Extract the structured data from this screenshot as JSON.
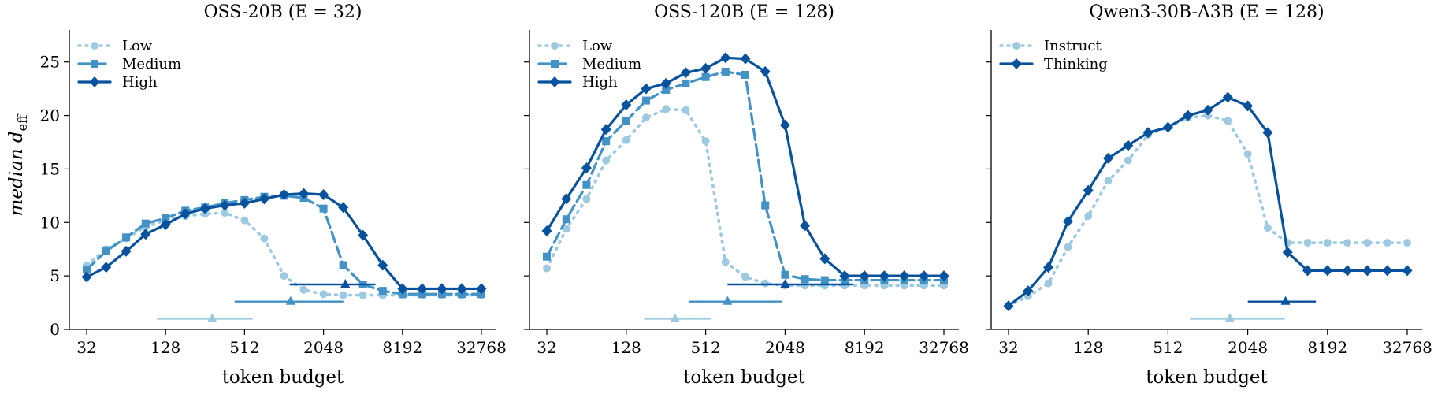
{
  "figure": {
    "ylabel_main": "median d",
    "ylabel_sub": "eff"
  },
  "chart_data": [
    {
      "type": "line",
      "title": "OSS-20B (E = 32)",
      "xlabel": "token budget",
      "ylabel": "median d_eff",
      "x_scale": "log2",
      "xlim": [
        32,
        32768
      ],
      "ylim": [
        0,
        28
      ],
      "x_ticks": [
        "32",
        "128",
        "512",
        "2048",
        "8192",
        "32768"
      ],
      "y_ticks": [
        "0",
        "5",
        "10",
        "15",
        "20",
        "25"
      ],
      "legend_position": "upper-left",
      "x": [
        32,
        45,
        64,
        90,
        128,
        181,
        256,
        362,
        512,
        724,
        1024,
        1448,
        2048,
        2896,
        4096,
        5793,
        8192,
        11585,
        16384,
        23170,
        32768
      ],
      "series": [
        {
          "name": "Low",
          "color": "#9ecae1",
          "style": "dotted",
          "marker": "circle",
          "values": [
            6.0,
            7.5,
            8.5,
            9.6,
            10.2,
            10.6,
            10.8,
            10.9,
            10.2,
            8.5,
            5.0,
            3.7,
            3.3,
            3.2,
            3.2,
            3.2,
            3.2,
            3.2,
            3.2,
            3.2,
            3.2
          ]
        },
        {
          "name": "Medium",
          "color": "#4292c6",
          "style": "dashed",
          "marker": "square",
          "values": [
            5.6,
            7.3,
            8.6,
            9.9,
            10.4,
            11.1,
            11.4,
            11.8,
            12.1,
            12.4,
            12.5,
            12.3,
            11.3,
            6.0,
            4.2,
            3.6,
            3.3,
            3.3,
            3.3,
            3.3,
            3.3
          ]
        },
        {
          "name": "High",
          "color": "#08519c",
          "style": "solid",
          "marker": "diamond",
          "values": [
            4.9,
            5.8,
            7.3,
            8.9,
            9.8,
            10.8,
            11.3,
            11.6,
            11.8,
            12.2,
            12.6,
            12.7,
            12.6,
            11.4,
            8.8,
            6.0,
            3.8,
            3.8,
            3.8,
            3.8,
            3.8
          ]
        }
      ],
      "ranges": [
        {
          "series": "Low",
          "y": 1.0,
          "from": 110,
          "to": 590,
          "marker_at": 290
        },
        {
          "series": "Medium",
          "y": 2.6,
          "from": 430,
          "to": 2900,
          "marker_at": 1150
        },
        {
          "series": "High",
          "y": 4.2,
          "from": 1130,
          "to": 5100,
          "marker_at": 3000
        }
      ]
    },
    {
      "type": "line",
      "title": "OSS-120B (E = 128)",
      "xlabel": "token budget",
      "ylabel": "median d_eff",
      "x_scale": "log2",
      "xlim": [
        32,
        32768
      ],
      "ylim": [
        0,
        28
      ],
      "x_ticks": [
        "32",
        "128",
        "512",
        "2048",
        "8192",
        "32768"
      ],
      "y_ticks": [
        "0",
        "5",
        "10",
        "15",
        "20",
        "25"
      ],
      "legend_position": "upper-left",
      "x": [
        32,
        45,
        64,
        90,
        128,
        181,
        256,
        362,
        512,
        724,
        1024,
        1448,
        2048,
        2896,
        4096,
        5793,
        8192,
        11585,
        16384,
        23170,
        32768
      ],
      "series": [
        {
          "name": "Low",
          "color": "#9ecae1",
          "style": "dotted",
          "marker": "circle",
          "values": [
            5.7,
            9.4,
            12.2,
            15.8,
            17.7,
            19.8,
            20.6,
            20.5,
            17.6,
            6.3,
            4.9,
            4.3,
            4.1,
            4.1,
            4.1,
            4.1,
            4.1,
            4.1,
            4.1,
            4.1,
            4.1
          ]
        },
        {
          "name": "Medium",
          "color": "#4292c6",
          "style": "dashed",
          "marker": "square",
          "values": [
            6.8,
            10.3,
            13.5,
            17.6,
            19.5,
            21.4,
            22.4,
            23.0,
            23.6,
            24.1,
            23.8,
            11.6,
            5.1,
            4.7,
            4.6,
            4.6,
            4.6,
            4.6,
            4.6,
            4.6,
            4.6
          ]
        },
        {
          "name": "High",
          "color": "#08519c",
          "style": "solid",
          "marker": "diamond",
          "values": [
            9.2,
            12.2,
            15.1,
            18.7,
            21.0,
            22.5,
            23.0,
            24.0,
            24.4,
            25.4,
            25.3,
            24.1,
            19.1,
            9.7,
            6.6,
            5.0,
            5.0,
            5.0,
            5.0,
            5.0,
            5.0
          ]
        }
      ],
      "ranges": [
        {
          "series": "Low",
          "y": 1.0,
          "from": 175,
          "to": 560,
          "marker_at": 300
        },
        {
          "series": "Medium",
          "y": 2.6,
          "from": 380,
          "to": 1950,
          "marker_at": 750
        },
        {
          "series": "High",
          "y": 4.2,
          "from": 750,
          "to": 6700,
          "marker_at": 2050
        }
      ]
    },
    {
      "type": "line",
      "title": "Qwen3-30B-A3B (E = 128)",
      "xlabel": "token budget",
      "ylabel": "median d_eff",
      "x_scale": "log2",
      "xlim": [
        32,
        32768
      ],
      "ylim": [
        0,
        28
      ],
      "x_ticks": [
        "32",
        "128",
        "512",
        "2048",
        "8192",
        "32768"
      ],
      "y_ticks": [
        "0",
        "5",
        "10",
        "15",
        "20",
        "25"
      ],
      "legend_position": "upper-left",
      "x": [
        32,
        45,
        64,
        90,
        128,
        181,
        256,
        362,
        512,
        724,
        1024,
        1448,
        2048,
        2896,
        4096,
        5793,
        8192,
        11585,
        16384,
        23170,
        32768
      ],
      "series": [
        {
          "name": "Instruct",
          "color": "#9ecae1",
          "style": "dotted",
          "marker": "circle",
          "values": [
            2.2,
            3.1,
            4.3,
            7.7,
            10.6,
            13.9,
            15.8,
            18.2,
            18.9,
            19.8,
            20.0,
            19.5,
            16.4,
            9.5,
            8.1,
            8.1,
            8.1,
            8.1,
            8.1,
            8.1,
            8.1
          ]
        },
        {
          "name": "Thinking",
          "color": "#08519c",
          "style": "solid",
          "marker": "diamond",
          "values": [
            2.2,
            3.6,
            5.8,
            10.1,
            13.0,
            16.0,
            17.2,
            18.4,
            18.9,
            20.0,
            20.5,
            21.7,
            20.9,
            18.4,
            7.2,
            5.5,
            5.5,
            5.5,
            5.5,
            5.5,
            5.5
          ]
        }
      ],
      "ranges": [
        {
          "series": "Instruct",
          "y": 1.0,
          "from": 750,
          "to": 3900,
          "marker_at": 1500
        },
        {
          "series": "Thinking",
          "y": 2.6,
          "from": 2050,
          "to": 6700,
          "marker_at": 3950
        }
      ]
    }
  ]
}
